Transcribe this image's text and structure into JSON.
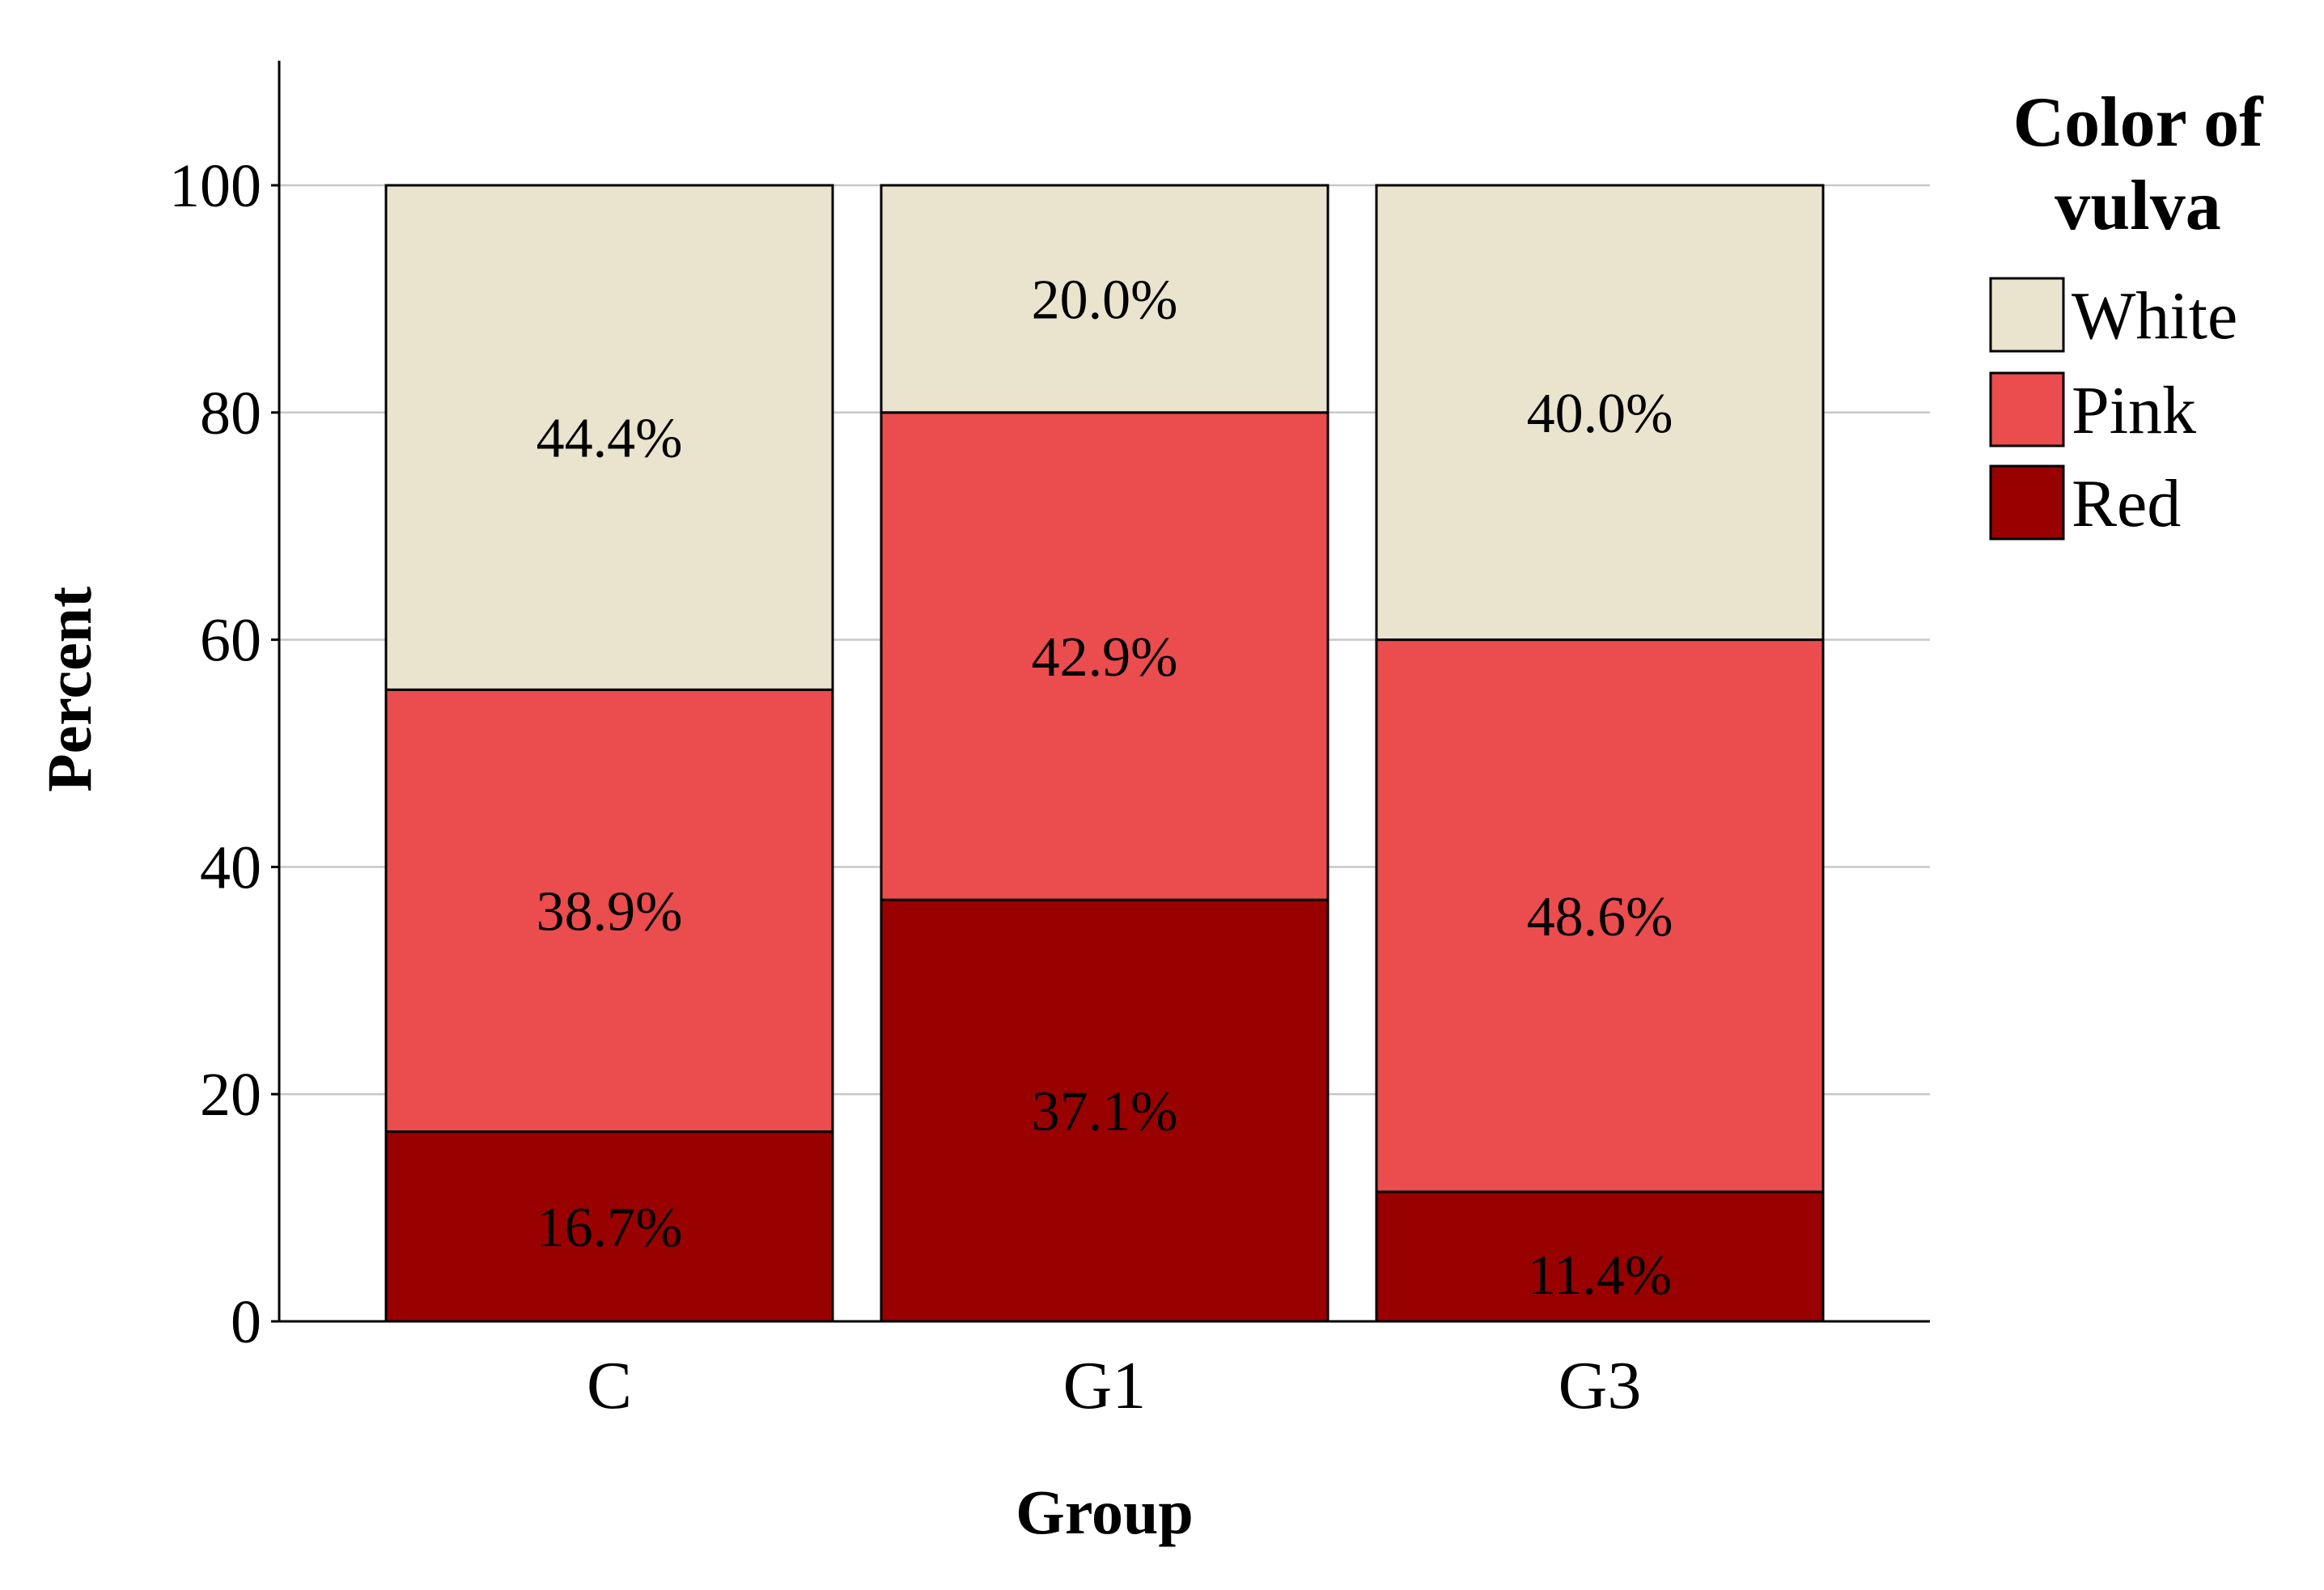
{
  "chart_data": {
    "type": "bar",
    "stacked": true,
    "categories": [
      "C",
      "G1",
      "G3"
    ],
    "series": [
      {
        "name": "Red",
        "color": "#990000",
        "values": [
          16.7,
          37.1,
          11.4
        ],
        "labels": [
          "16.7%",
          "37.1%",
          "11.4%"
        ]
      },
      {
        "name": "Pink",
        "color": "#EB4C4E",
        "values": [
          38.9,
          42.9,
          48.6
        ],
        "labels": [
          "38.9%",
          "42.9%",
          "48.6%"
        ]
      },
      {
        "name": "White",
        "color": "#EAE3CD",
        "values": [
          44.4,
          20.0,
          40.0
        ],
        "labels": [
          "44.4%",
          "20.0%",
          "40.0%"
        ]
      }
    ],
    "xlabel": "Group",
    "ylabel": "Percent",
    "ylim": [
      0,
      110
    ],
    "yticks": [
      0,
      20,
      40,
      60,
      80,
      100
    ],
    "grid": true,
    "legend": {
      "title_lines": [
        "Color of",
        "vulva"
      ],
      "order": [
        "White",
        "Pink",
        "Red"
      ],
      "placement": "top-right, outside plot"
    }
  }
}
